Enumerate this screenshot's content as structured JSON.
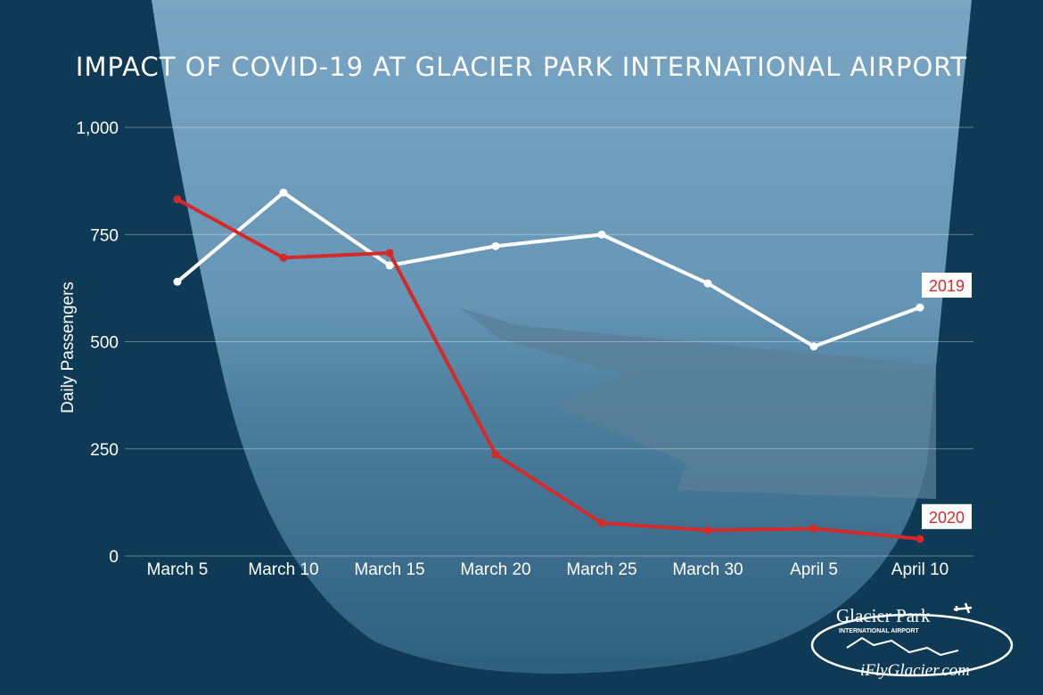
{
  "chart_data": {
    "type": "line",
    "title": "IMPACT OF COVID-19 AT GLACIER PARK INTERNATIONAL AIRPORT",
    "xlabel": "",
    "ylabel": "Daily Passengers",
    "categories": [
      "March 5",
      "March 10",
      "March 15",
      "March 20",
      "March 25",
      "March 30",
      "April 5",
      "April 10"
    ],
    "ylim": [
      0,
      1000
    ],
    "yticks": [
      0,
      250,
      500,
      750,
      1000
    ],
    "ytick_labels": [
      "0",
      "250",
      "500",
      "750",
      "1,000"
    ],
    "grid": true,
    "series": [
      {
        "name": "2019",
        "color": "#ffffff",
        "values": [
          640,
          848,
          678,
          723,
          750,
          636,
          489,
          580
        ]
      },
      {
        "name": "2020",
        "color": "#d42a2a",
        "values": [
          832,
          696,
          707,
          237,
          77,
          60,
          64,
          40
        ]
      }
    ]
  },
  "logo": {
    "name": "Glacier Park",
    "subtitle": "INTERNATIONAL AIRPORT",
    "url": "iFlyGlacier.com"
  }
}
